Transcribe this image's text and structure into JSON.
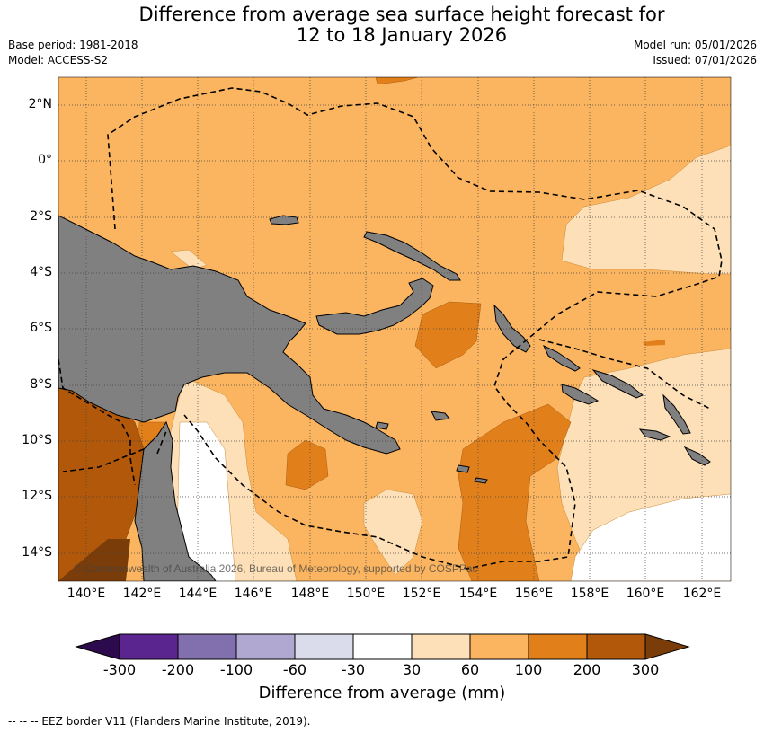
{
  "title": {
    "line1": "Difference from average sea surface height forecast for",
    "line2": "12 to 18 January 2026"
  },
  "meta": {
    "base_period": "Base period: 1981-2018",
    "model": "Model: ACCESS-S2",
    "model_run": "Model run: 05/01/2026",
    "issued": "Issued: 07/01/2026"
  },
  "axes": {
    "lat_labels": [
      "2°N",
      "0°",
      "2°S",
      "4°S",
      "6°S",
      "8°S",
      "10°S",
      "12°S",
      "14°S"
    ],
    "lon_labels": [
      "140°E",
      "142°E",
      "144°E",
      "146°E",
      "148°E",
      "150°E",
      "152°E",
      "154°E",
      "156°E",
      "158°E",
      "160°E",
      "162°E"
    ]
  },
  "colorbar": {
    "labels": [
      "-300",
      "-200",
      "-100",
      "-60",
      "-30",
      "30",
      "60",
      "100",
      "200",
      "300"
    ],
    "colors": [
      "#5b2590",
      "#8170ad",
      "#b1a8d1",
      "#dadbeb",
      "#ffffff",
      "#fde0b7",
      "#fbb45f",
      "#e1801a",
      "#b1580b"
    ],
    "under_color": "#2d0a4d",
    "over_color": "#7a3c08",
    "title": "Difference from average (mm)"
  },
  "map": {
    "land_color": "#808080",
    "copyright": "© Commonwealth of Australia 2026, Bureau of Meteorology, supported by COSPPac"
  },
  "legend_footer": "--  --  -- EEZ border V11 (Flanders Marine Institute, 2019)."
}
